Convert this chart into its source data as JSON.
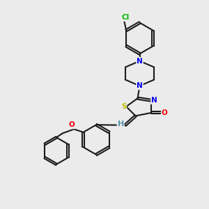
{
  "background_color": "#ebebeb",
  "bond_color": "#1a1a1a",
  "bond_width": 1.5,
  "atom_colors": {
    "N": "#0000ee",
    "O": "#ee0000",
    "S": "#bbbb00",
    "Cl": "#00bb00",
    "H": "#5599aa",
    "C": "#1a1a1a"
  },
  "font_size": 7.5,
  "figsize": [
    3.0,
    3.0
  ],
  "dpi": 100
}
